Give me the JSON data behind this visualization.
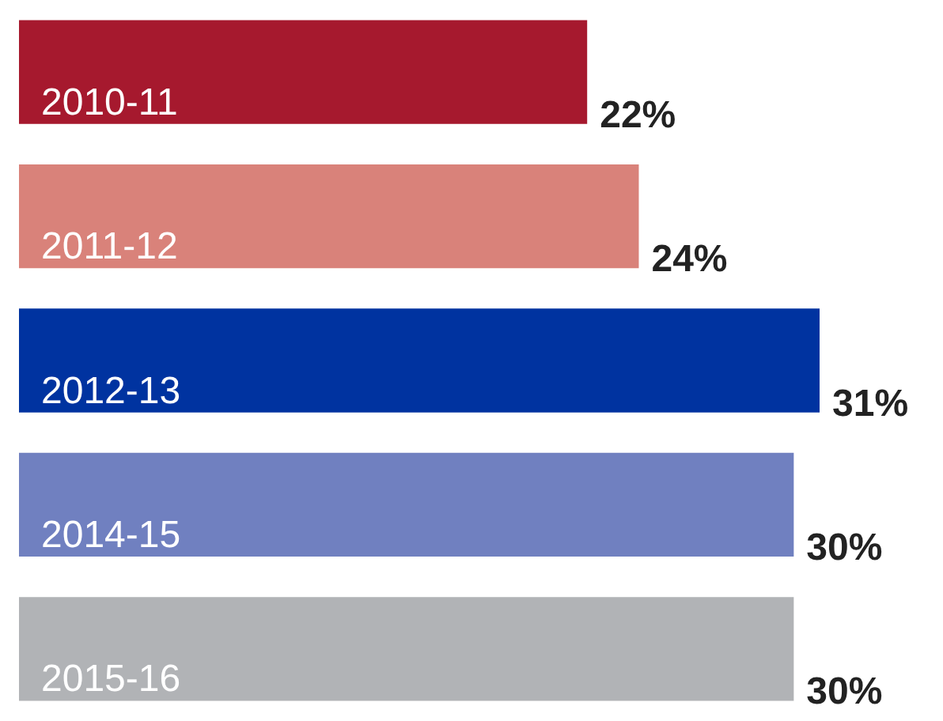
{
  "chart_data": {
    "type": "bar",
    "orientation": "horizontal",
    "categories": [
      "2010-11",
      "2011-12",
      "2012-13",
      "2014-15",
      "2015-16"
    ],
    "values": [
      22,
      24,
      31,
      30,
      30
    ],
    "colors": [
      "#a6192e",
      "#d9827a",
      "#0033a0",
      "#7080c0",
      "#b1b3b6"
    ],
    "value_labels": [
      "22%",
      "24%",
      "31%",
      "30%",
      "30%"
    ],
    "legend": false,
    "tick_labels": false
  }
}
